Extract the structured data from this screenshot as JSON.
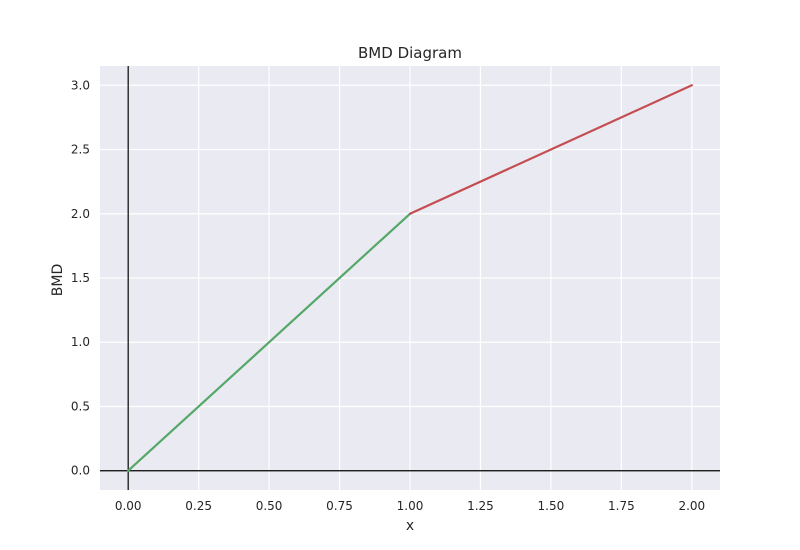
{
  "chart_data": {
    "type": "line",
    "title": "BMD Diagram",
    "xlabel": "x",
    "ylabel": "BMD",
    "xlim": [
      -0.1,
      2.1
    ],
    "ylim": [
      -0.15,
      3.15
    ],
    "x_ticks": [
      "0.00",
      "0.25",
      "0.50",
      "0.75",
      "1.00",
      "1.25",
      "1.50",
      "1.75",
      "2.00"
    ],
    "y_ticks": [
      "0.0",
      "0.5",
      "1.0",
      "1.5",
      "2.0",
      "2.5",
      "3.0"
    ],
    "grid": true,
    "background": "#eaeaf2",
    "series": [
      {
        "x": [
          0,
          1
        ],
        "y": [
          0,
          2
        ],
        "color": "#55a868"
      },
      {
        "x": [
          1,
          2
        ],
        "y": [
          2,
          3
        ],
        "color": "#c44e52"
      }
    ],
    "reference_lines": {
      "x_zero": true,
      "y_zero": true,
      "color": "#000000"
    }
  }
}
